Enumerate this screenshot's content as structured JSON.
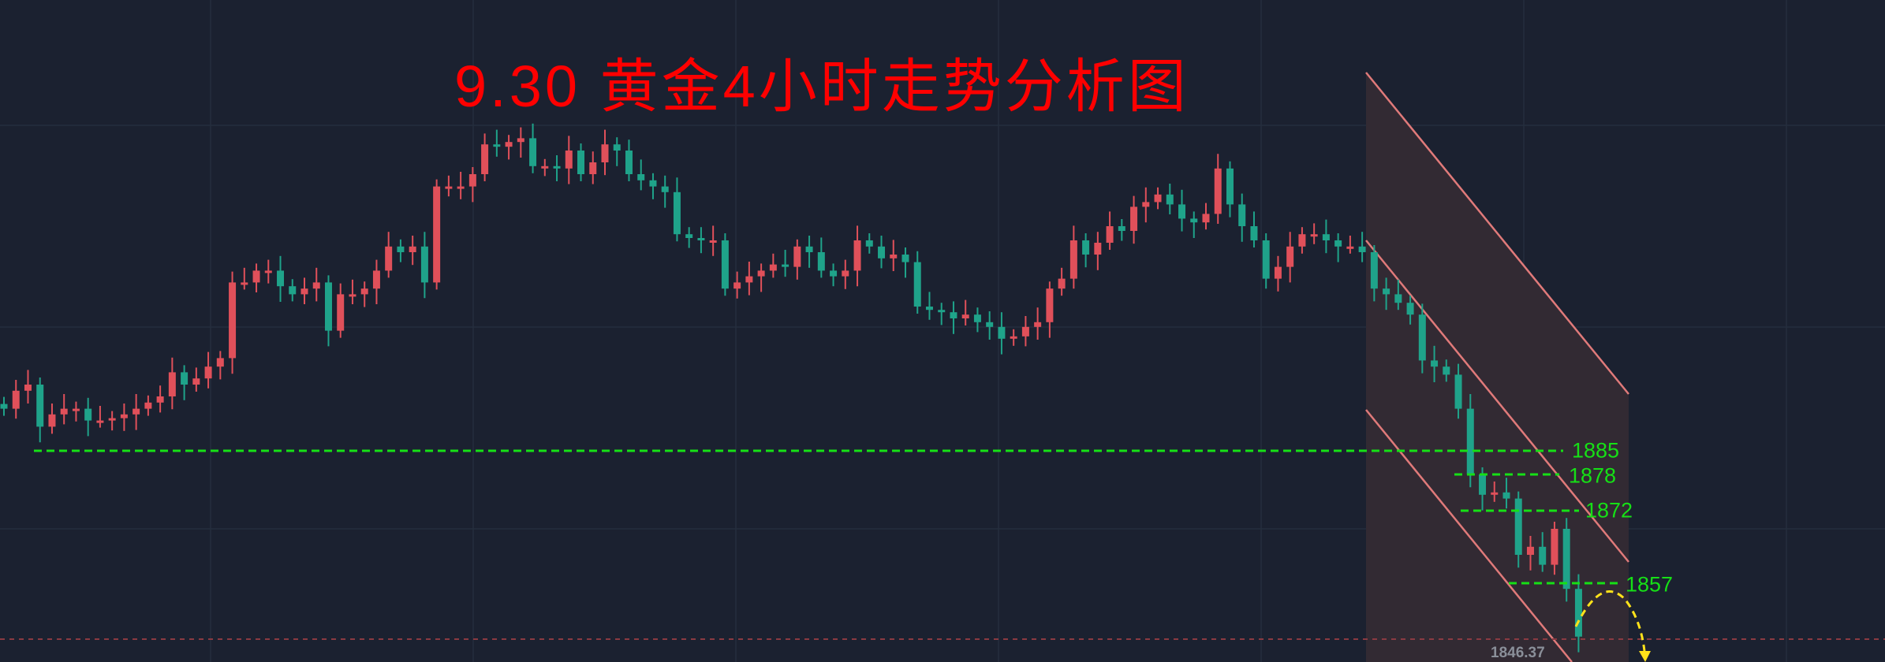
{
  "chart_data": {
    "type": "candlestick",
    "title": "9.30 黄金4小时走势分析图",
    "closes": [
      1893.9,
      1897.7,
      1899.0,
      1890.1,
      1892.7,
      1893.9,
      1893.9,
      1891.4,
      1891.4,
      1891.9,
      1892.7,
      1893.9,
      1895.2,
      1896.5,
      1901.6,
      1899.0,
      1900.3,
      1902.8,
      1904.6,
      1920.6,
      1920.6,
      1923.1,
      1923.1,
      1919.8,
      1918.1,
      1919.3,
      1920.6,
      1910.4,
      1918.1,
      1918.1,
      1919.3,
      1923.1,
      1928.2,
      1927.0,
      1928.2,
      1920.6,
      1940.9,
      1940.9,
      1940.9,
      1943.5,
      1949.8,
      1949.3,
      1950.3,
      1951.1,
      1945.2,
      1945.2,
      1944.7,
      1948.5,
      1943.5,
      1946.0,
      1949.8,
      1948.5,
      1943.5,
      1942.2,
      1940.9,
      1939.7,
      1930.8,
      1930.0,
      1929.5,
      1929.5,
      1919.3,
      1920.6,
      1921.9,
      1923.1,
      1924.4,
      1923.9,
      1928.2,
      1927.0,
      1923.1,
      1921.9,
      1923.1,
      1929.5,
      1928.2,
      1925.7,
      1926.5,
      1924.9,
      1915.5,
      1914.8,
      1914.3,
      1913.0,
      1913.8,
      1912.2,
      1911.2,
      1908.7,
      1909.2,
      1911.2,
      1912.2,
      1919.3,
      1921.4,
      1929.5,
      1926.5,
      1929.0,
      1932.5,
      1931.5,
      1936.6,
      1937.6,
      1939.2,
      1937.1,
      1934.1,
      1933.3,
      1935.1,
      1944.7,
      1937.1,
      1932.5,
      1929.5,
      1921.4,
      1923.9,
      1928.2,
      1930.8,
      1930.8,
      1929.5,
      1928.2,
      1928.2,
      1927.0,
      1919.3,
      1918.1,
      1916.3,
      1913.8,
      1904.1,
      1902.8,
      1901.1,
      1893.9,
      1880.0,
      1875.7,
      1876.2,
      1874.9,
      1863.0,
      1864.7,
      1860.9,
      1868.5,
      1855.8,
      1845.7
    ],
    "levels": [
      {
        "label": "1885",
        "value": 1885
      },
      {
        "label": "1878",
        "value": 1878
      },
      {
        "label": "1872",
        "value": 1872
      },
      {
        "label": "1857",
        "value": 1857
      }
    ],
    "last_price": "1846.37",
    "grid": true,
    "channel": "descending",
    "colors": {
      "up": "#e0505a",
      "down": "#1fa38a",
      "level": "#16e016",
      "channel": "#e07a7a",
      "arrow": "#ffe21a",
      "title": "#ff0000"
    }
  }
}
